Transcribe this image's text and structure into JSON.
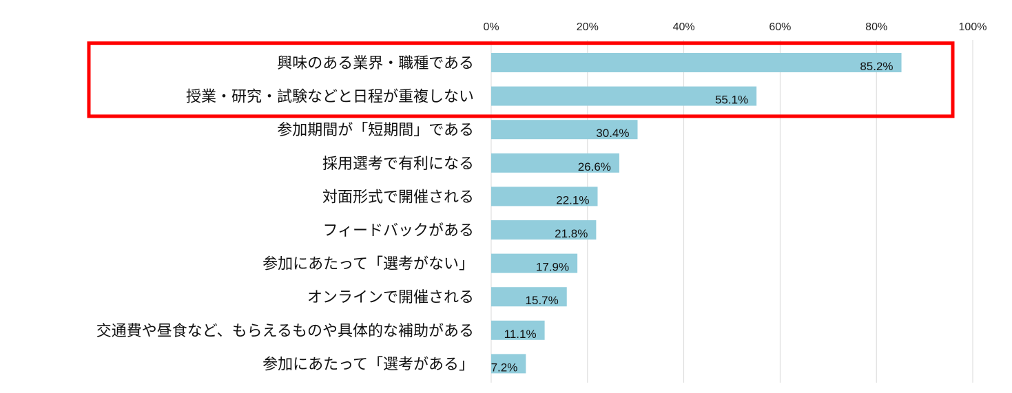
{
  "chart_data": {
    "type": "bar",
    "orientation": "horizontal",
    "categories": [
      "興味のある業界・職種である",
      "授業・研究・試験などと日程が重複しない",
      "参加期間が「短期間」である",
      "採用選考で有利になる",
      "対面形式で開催される",
      "フィードバックがある",
      "参加にあたって「選考がない」",
      "オンラインで開催される",
      "交通費や昼食など、もらえるものや具体的な補助がある",
      "参加にあたって「選考がある」"
    ],
    "values": [
      85.2,
      55.1,
      30.4,
      26.6,
      22.1,
      21.8,
      17.9,
      15.7,
      11.1,
      7.2
    ],
    "data_labels": [
      "85.2%",
      "55.1%",
      "30.4%",
      "26.6%",
      "22.1%",
      "21.8%",
      "17.9%",
      "15.7%",
      "11.1%",
      "7.2%"
    ],
    "xlim": [
      0,
      100
    ],
    "x_ticks": [
      "0%",
      "20%",
      "40%",
      "60%",
      "80%",
      "100%"
    ],
    "x_axis_position": "top",
    "grid": true,
    "legend": "none",
    "highlight": {
      "type": "box",
      "covers_categories": [
        0,
        1
      ]
    }
  },
  "colors": {
    "bar": "#92cddc",
    "highlight_box": "#ff0000",
    "grid": "#d9d9d9",
    "text": "#111111"
  }
}
